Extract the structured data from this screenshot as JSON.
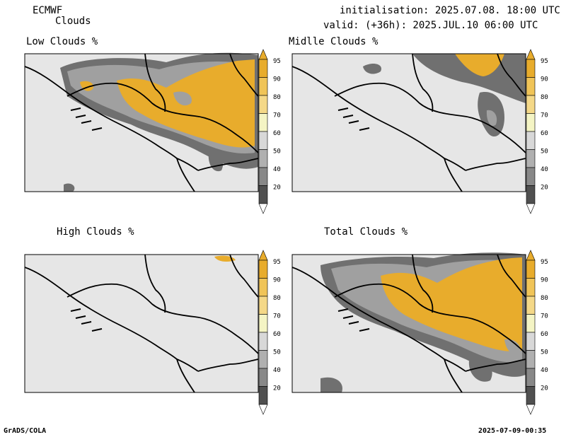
{
  "header": {
    "model": "ECMWF",
    "field": "Clouds",
    "init": "initialisation: 2025.07.08. 18:00 UTC",
    "valid": "valid: (+36h): 2025.JUL.10 06:00 UTC"
  },
  "panels": [
    {
      "id": "low",
      "title": "Low Clouds %"
    },
    {
      "id": "mid",
      "title": "Midlle Clouds %"
    },
    {
      "id": "high",
      "title": "High Clouds %"
    },
    {
      "id": "total",
      "title": "Total Clouds %"
    }
  ],
  "colorbar": {
    "labels": [
      "95",
      "90",
      "80",
      "70",
      "60",
      "50",
      "40",
      "20"
    ],
    "colors": [
      "#e8ac2c",
      "#f0c458",
      "#f4d888",
      "#f4f4c4",
      "#d8d8d8",
      "#b0b0b0",
      "#888888",
      "#505050"
    ],
    "top_color": "#e8ac2c",
    "bottom_color": "#ffffff"
  },
  "colors": {
    "background_fill": "#e6e6e6",
    "land_lines": "#000000",
    "cloud_orange": "#e8ac2c",
    "cloud_dark": "#707070",
    "cloud_mid": "#a0a0a0"
  },
  "footer": {
    "left": "GrADS/COLA",
    "right": "2025-07-09-00:35"
  }
}
